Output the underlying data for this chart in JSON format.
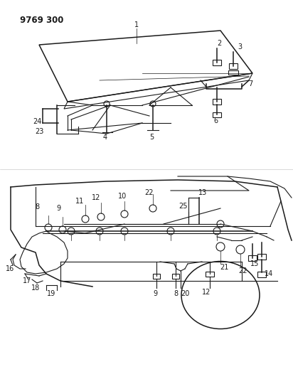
{
  "title": "9769 300",
  "bg_color": "#ffffff",
  "line_color": "#1a1a1a",
  "label_color": "#1a1a1a",
  "title_fontsize": 8.5,
  "label_fontsize": 7,
  "fig_width": 4.12,
  "fig_height": 5.33,
  "dpi": 100
}
